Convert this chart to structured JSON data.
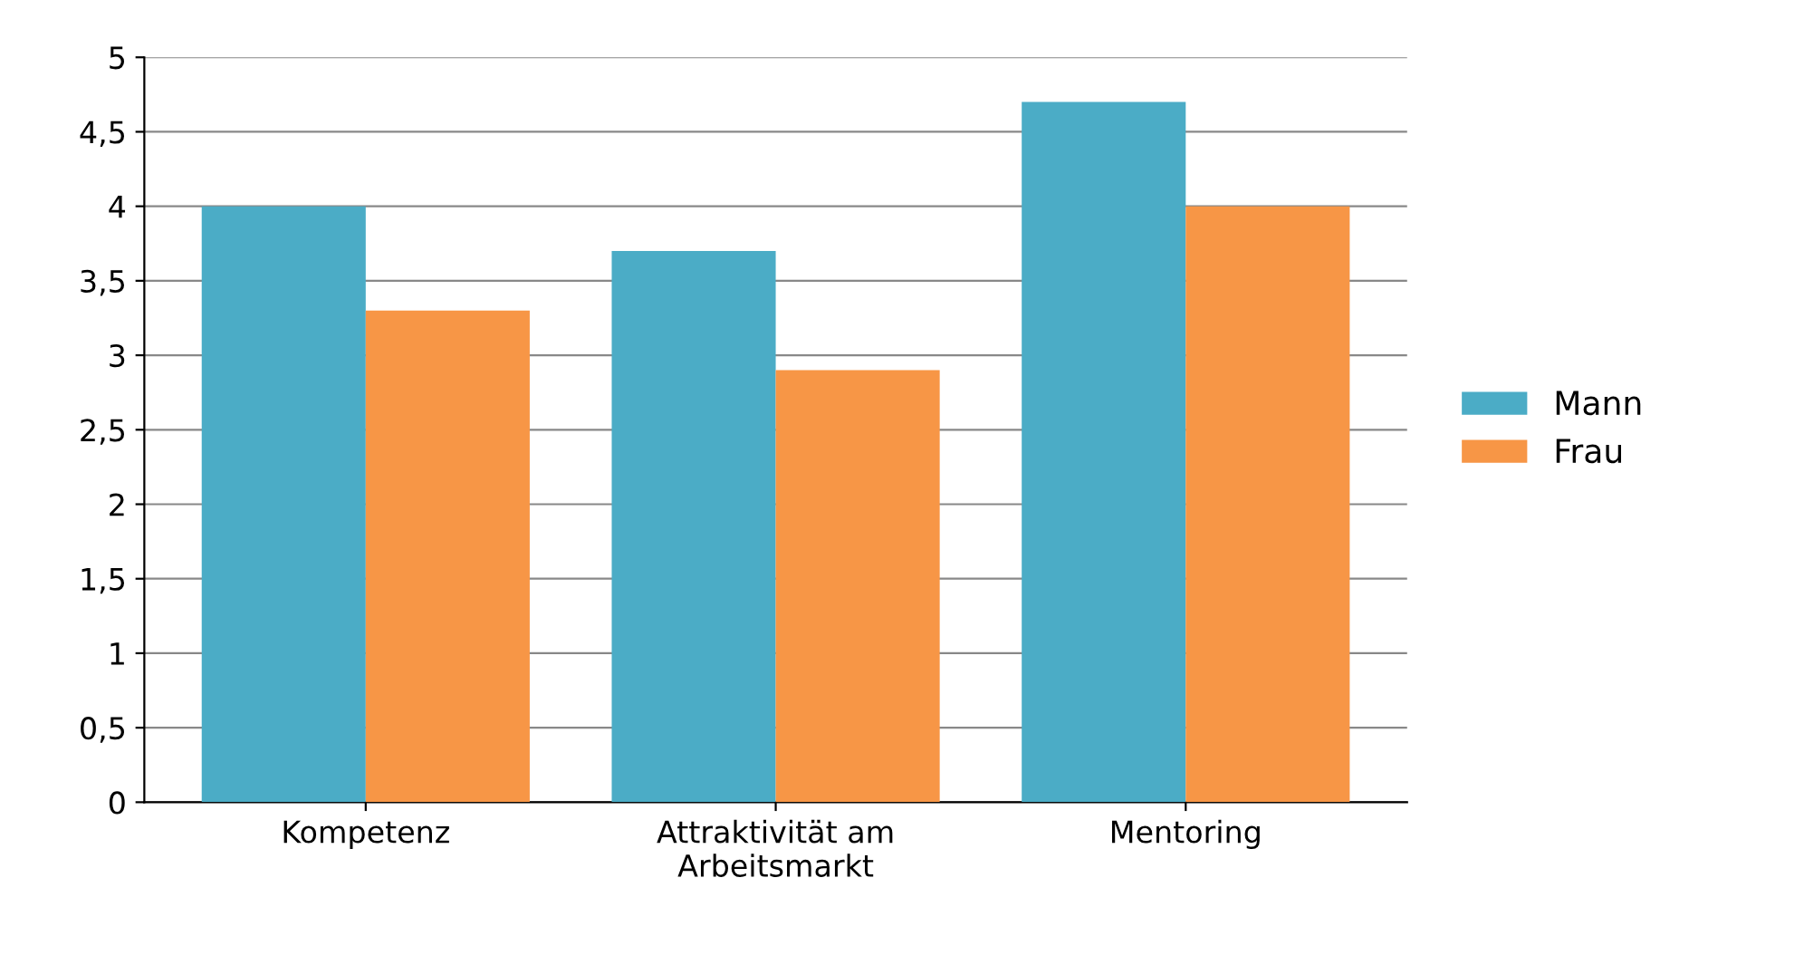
{
  "chart_data": {
    "type": "bar",
    "categories": [
      "Kompetenz",
      "Attraktivität am\nArbeitsmarkt",
      "Mentoring"
    ],
    "series": [
      {
        "name": "Mann",
        "color": "#4bacc6",
        "values": [
          4.0,
          3.7,
          4.7
        ]
      },
      {
        "name": "Frau",
        "color": "#f79646",
        "values": [
          3.3,
          2.9,
          4.0
        ]
      }
    ],
    "ylim": [
      0,
      5
    ],
    "yticks": [
      0,
      {
        "value": 0.5,
        "label": "0,5"
      },
      1,
      {
        "value": 1.5,
        "label": "1,5"
      },
      2,
      {
        "value": 2.5,
        "label": "2,5"
      },
      3,
      {
        "value": 3.5,
        "label": "3,5"
      },
      4,
      {
        "value": 4.5,
        "label": "4,5"
      },
      5
    ],
    "grid": "y",
    "legend": "right"
  }
}
